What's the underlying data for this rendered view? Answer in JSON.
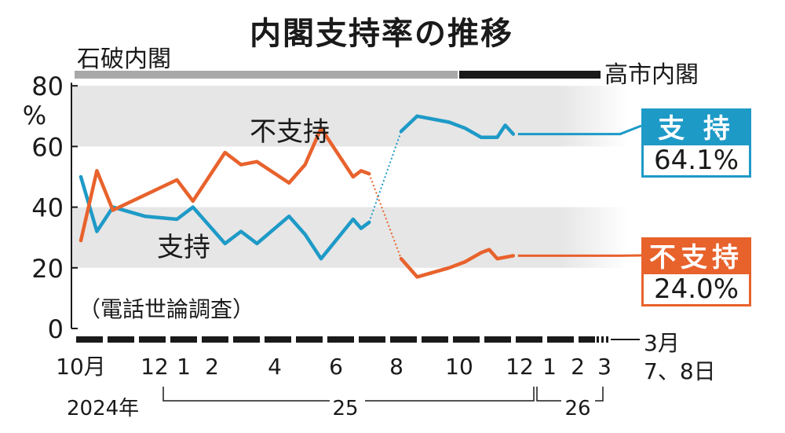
{
  "title": "内閣支持率の推移",
  "cabinets": {
    "ishiba": "石破内閣",
    "takaichi": "高市内閣"
  },
  "note": "（電話世論調査）",
  "colors": {
    "support": "#1e9ac7",
    "nonsupport": "#e8622c",
    "ishiba_bar": "#a8a8a8",
    "takaichi_bar": "#1a1a1a",
    "band": "#e6e6e6"
  },
  "latest": {
    "support_label": "支 持",
    "support_value": "64.1%",
    "nonsupport_label": "不支持",
    "nonsupport_value": "24.0%",
    "date_month": "3月",
    "date_days": "7、8日"
  },
  "chart_data": {
    "type": "line",
    "ylim": [
      0,
      80
    ],
    "yticks": [
      "0",
      "20",
      "40",
      "60",
      "80"
    ],
    "y_unit": "%",
    "xticks": [
      "10月",
      "12",
      "1",
      "2",
      "4",
      "6",
      "8",
      "10",
      "12",
      "1",
      "2",
      "3"
    ],
    "year_labels": [
      "2024年",
      "25",
      "26"
    ],
    "grid_bands": [
      [
        20,
        40
      ],
      [
        60,
        80
      ]
    ],
    "series": [
      {
        "name": "支持",
        "segments": [
          [
            [
              0,
              50
            ],
            [
              0.5,
              32
            ],
            [
              1,
              40
            ],
            [
              2,
              37
            ],
            [
              3,
              36
            ],
            [
              3.5,
              40
            ],
            [
              4.5,
              28
            ],
            [
              5,
              32
            ],
            [
              5.5,
              28
            ],
            [
              6.5,
              37
            ],
            [
              7,
              31
            ],
            [
              7.5,
              23
            ],
            [
              8.5,
              36
            ],
            [
              8.75,
              33
            ],
            [
              9,
              35
            ]
          ],
          [
            [
              10,
              65
            ],
            [
              10.5,
              70
            ],
            [
              11.5,
              68
            ],
            [
              12,
              66
            ],
            [
              12.5,
              63
            ],
            [
              13,
              63
            ],
            [
              13.25,
              67
            ],
            [
              13.5,
              64.1
            ]
          ]
        ],
        "bridge": [
          [
            9,
            35
          ],
          [
            10,
            65
          ]
        ]
      },
      {
        "name": "不支持",
        "segments": [
          [
            [
              0,
              29
            ],
            [
              0.5,
              52
            ],
            [
              1,
              39
            ],
            [
              3,
              49
            ],
            [
              3.5,
              42
            ],
            [
              4.5,
              58
            ],
            [
              5,
              54
            ],
            [
              5.5,
              55
            ],
            [
              6.5,
              48
            ],
            [
              7,
              54
            ],
            [
              7.5,
              66
            ],
            [
              8.5,
              50
            ],
            [
              8.75,
              52
            ],
            [
              9,
              51
            ]
          ],
          [
            [
              10,
              23
            ],
            [
              10.5,
              17
            ],
            [
              11.5,
              20
            ],
            [
              12,
              22
            ],
            [
              12.5,
              25
            ],
            [
              12.75,
              26
            ],
            [
              13,
              23
            ],
            [
              13.5,
              24
            ]
          ]
        ],
        "bridge": [
          [
            9,
            51
          ],
          [
            10,
            23
          ]
        ]
      }
    ]
  }
}
